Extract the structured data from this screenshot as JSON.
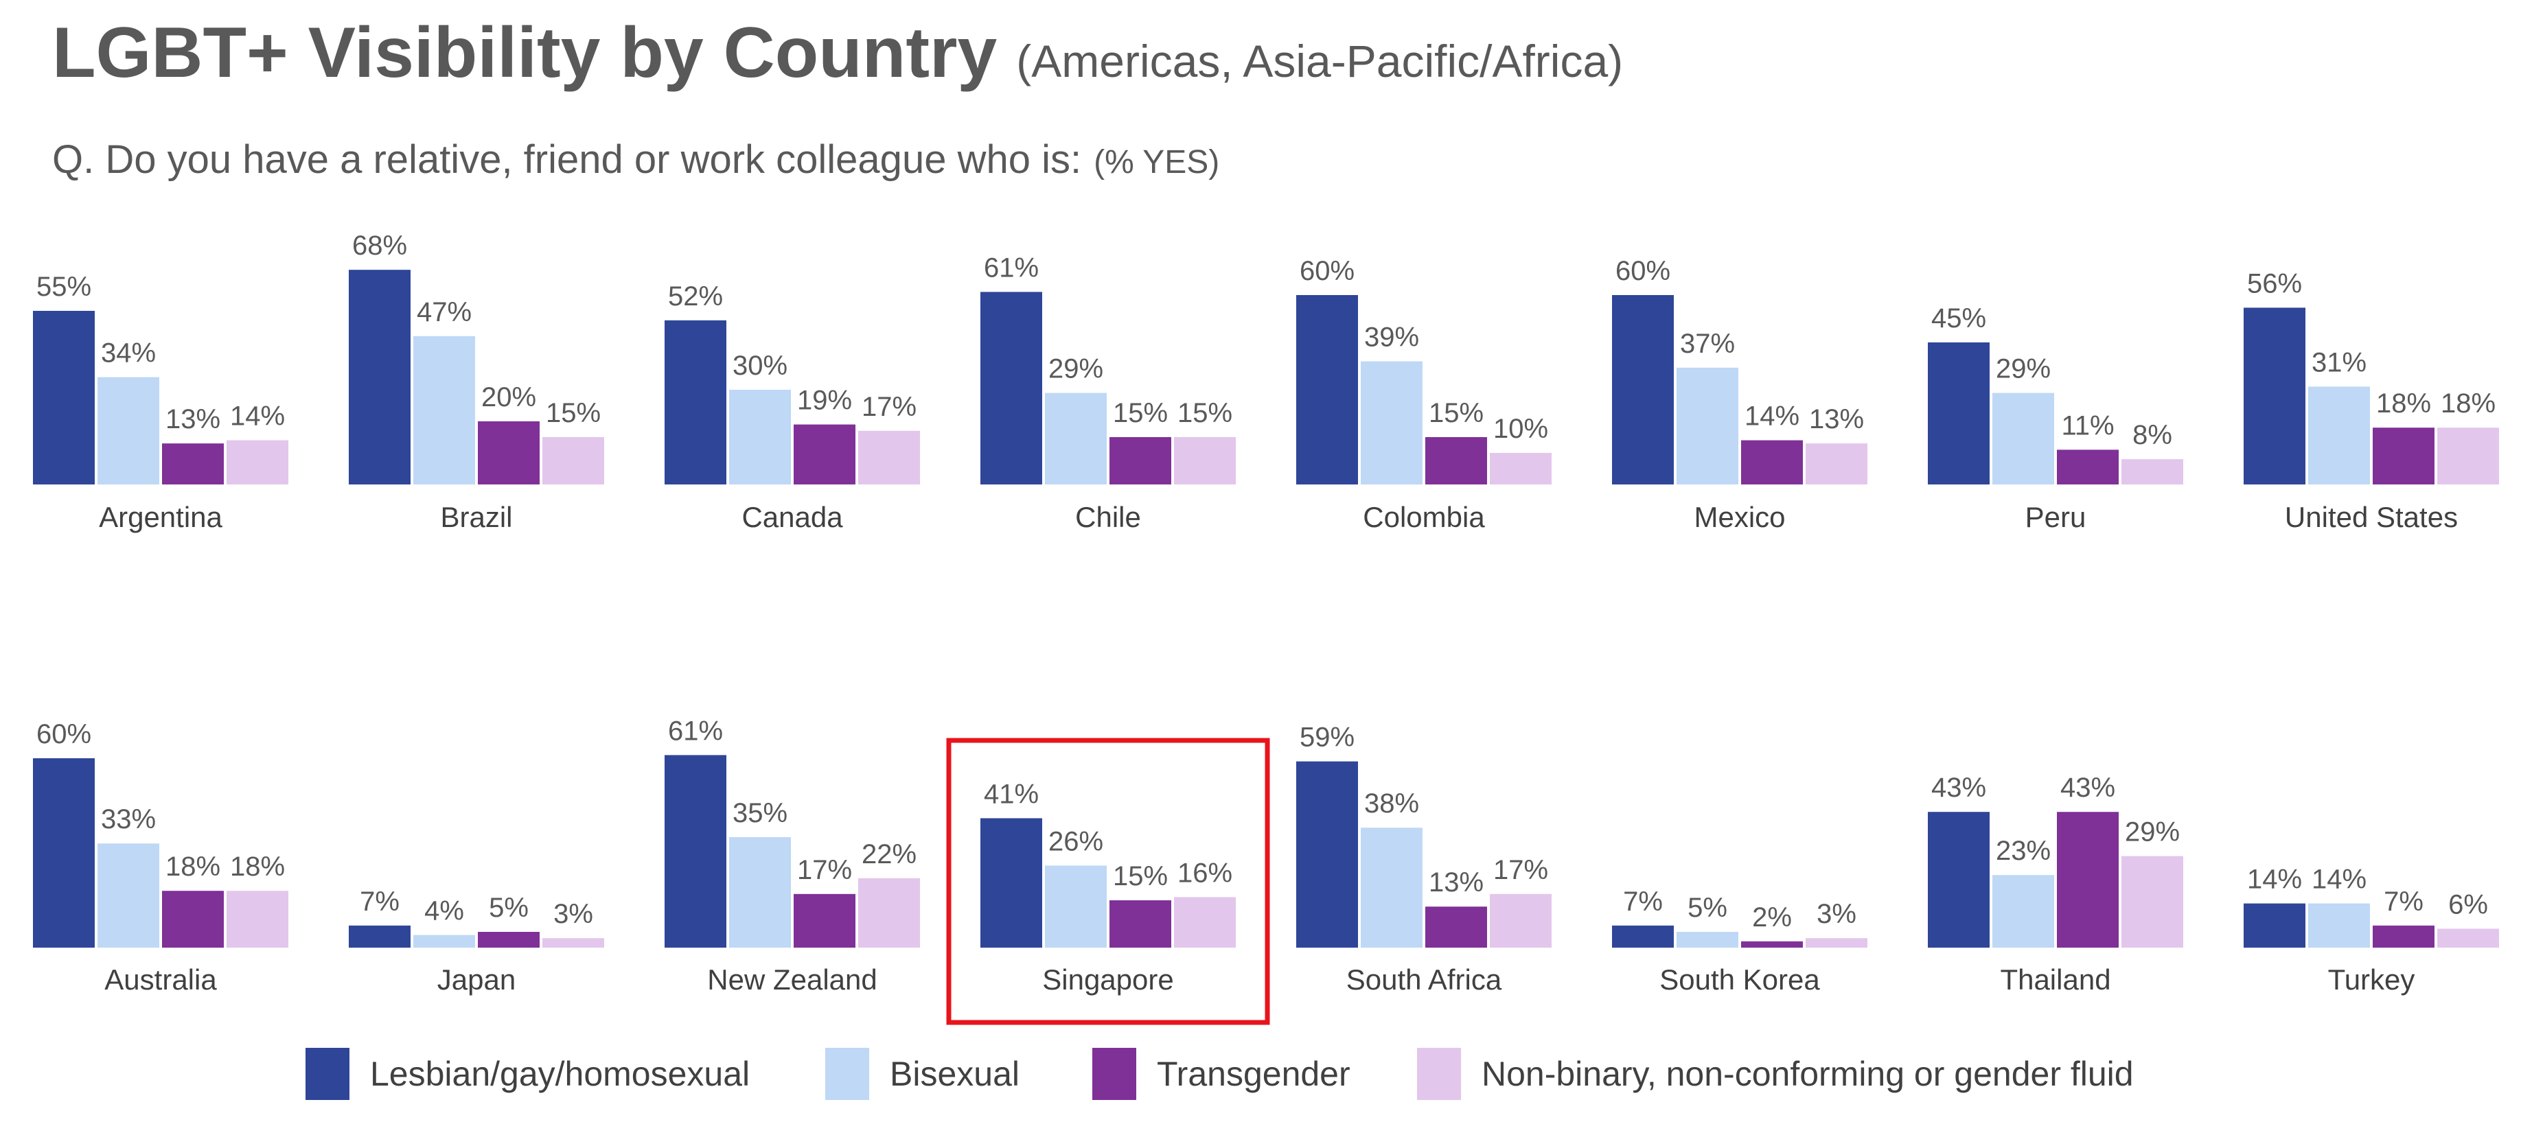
{
  "header": {
    "title": "LGBT+ Visibility by Country",
    "subtitle": "(Americas, Asia-Pacific/Africa)",
    "question": "Q. Do you have a relative, friend or work colleague who is:",
    "question_note": "(% YES)"
  },
  "colors": {
    "lesbian_gay": "#2E4598",
    "bisexual": "#BED8F6",
    "transgender": "#7F3197",
    "non_binary": "#E3C6EC",
    "highlight": "#E8141B"
  },
  "highlight": {
    "category": "Singapore"
  },
  "chart_data": [
    {
      "type": "bar",
      "region": "Americas",
      "categories": [
        "Argentina",
        "Brazil",
        "Canada",
        "Chile",
        "Colombia",
        "Mexico",
        "Peru",
        "United States"
      ],
      "series": [
        {
          "name": "Lesbian/gay/homosexual",
          "values": [
            55,
            68,
            52,
            61,
            60,
            60,
            45,
            56
          ]
        },
        {
          "name": "Bisexual",
          "values": [
            34,
            47,
            30,
            29,
            39,
            37,
            29,
            31
          ]
        },
        {
          "name": "Transgender",
          "values": [
            13,
            20,
            19,
            15,
            15,
            14,
            11,
            18
          ]
        },
        {
          "name": "Non-binary, non-conforming or gender fluid",
          "values": [
            14,
            15,
            17,
            15,
            10,
            13,
            8,
            18
          ]
        }
      ],
      "unit": "%",
      "ylim": [
        0,
        70
      ],
      "grid": false,
      "legend": "bottom"
    },
    {
      "type": "bar",
      "region": "Asia-Pacific/Africa",
      "categories": [
        "Australia",
        "Japan",
        "New Zealand",
        "Singapore",
        "South Africa",
        "South Korea",
        "Thailand",
        "Turkey"
      ],
      "series": [
        {
          "name": "Lesbian/gay/homosexual",
          "values": [
            60,
            7,
            61,
            41,
            59,
            7,
            43,
            14
          ]
        },
        {
          "name": "Bisexual",
          "values": [
            33,
            4,
            35,
            26,
            38,
            5,
            23,
            14
          ]
        },
        {
          "name": "Transgender",
          "values": [
            18,
            5,
            17,
            15,
            13,
            2,
            43,
            7
          ]
        },
        {
          "name": "Non-binary, non-conforming or gender fluid",
          "values": [
            18,
            3,
            22,
            16,
            17,
            3,
            29,
            6
          ]
        }
      ],
      "unit": "%",
      "ylim": [
        0,
        70
      ],
      "grid": false,
      "legend": "bottom"
    }
  ]
}
